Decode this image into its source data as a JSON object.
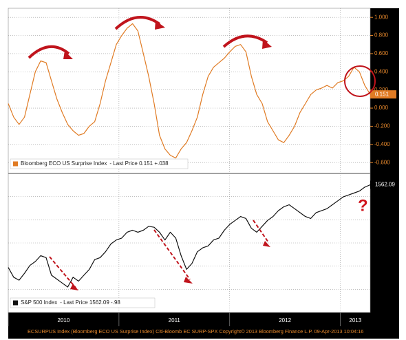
{
  "chart_data": [
    {
      "type": "line",
      "series": [
        {
          "name": "Bloomberg ECO US Surprise Index",
          "legend_text": "- Last Price 0.151 +.038",
          "color": "#e07b24",
          "values": [
            0.05,
            -0.1,
            -0.18,
            -0.1,
            0.15,
            0.4,
            0.52,
            0.5,
            0.3,
            0.1,
            -0.05,
            -0.18,
            -0.25,
            -0.3,
            -0.28,
            -0.2,
            -0.15,
            0.05,
            0.3,
            0.5,
            0.7,
            0.8,
            0.88,
            0.93,
            0.85,
            0.6,
            0.35,
            0.05,
            -0.3,
            -0.45,
            -0.52,
            -0.55,
            -0.45,
            -0.38,
            -0.25,
            -0.1,
            0.15,
            0.35,
            0.45,
            0.5,
            0.55,
            0.62,
            0.68,
            0.7,
            0.62,
            0.35,
            0.15,
            0.05,
            -0.15,
            -0.25,
            -0.35,
            -0.38,
            -0.3,
            -0.2,
            -0.05,
            0.05,
            0.15,
            0.2,
            0.22,
            0.25,
            0.22,
            0.28,
            0.3,
            0.35,
            0.45,
            0.4,
            0.25,
            0.151
          ]
        }
      ],
      "last_price_label": "0.151",
      "xlim": [
        2010,
        2013.27
      ],
      "xticks": [
        2010,
        2011,
        2012,
        2013
      ],
      "ylim": [
        -0.72,
        1.1
      ],
      "yticks": [
        {
          "value": 1,
          "label": "1.000"
        },
        {
          "value": 0.8,
          "label": "0.800"
        },
        {
          "value": 0.6,
          "label": "0.600"
        },
        {
          "value": 0.4,
          "label": "0.400"
        },
        {
          "value": 0.2,
          "label": "0.200"
        },
        {
          "value": 0,
          "label": "0.000"
        },
        {
          "value": -0.2,
          "label": "-0.200"
        },
        {
          "value": -0.4,
          "label": "-0.400"
        },
        {
          "value": -0.6,
          "label": "-0.600"
        }
      ],
      "grid": true
    },
    {
      "type": "line",
      "series": [
        {
          "name": "S&P 500 Index",
          "legend_text": "- Last Price 1562.09 -.98",
          "color": "#111111",
          "values": [
            1140,
            1090,
            1075,
            1110,
            1150,
            1170,
            1200,
            1190,
            1100,
            1080,
            1060,
            1040,
            1090,
            1070,
            1100,
            1130,
            1180,
            1190,
            1220,
            1260,
            1280,
            1290,
            1320,
            1330,
            1320,
            1330,
            1350,
            1345,
            1320,
            1280,
            1320,
            1290,
            1200,
            1130,
            1160,
            1220,
            1240,
            1250,
            1280,
            1290,
            1330,
            1360,
            1380,
            1400,
            1390,
            1340,
            1320,
            1350,
            1380,
            1400,
            1430,
            1450,
            1460,
            1440,
            1420,
            1400,
            1390,
            1420,
            1430,
            1440,
            1460,
            1480,
            1500,
            1510,
            1520,
            1530,
            1550,
            1562.09
          ]
        }
      ],
      "last_price_label": "1562.09",
      "xlim": [
        2010,
        2013.27
      ],
      "xticks": [
        2010,
        2011,
        2012,
        2013
      ],
      "ylim": [
        910,
        1620
      ],
      "grid": true
    }
  ],
  "footer": "ECSURPUS Index (Bloomberg ECO US Surprise Index) Citi-Bloomb EC SURP-SPX Copyright© 2013 Bloomberg Finance L.P. 09-Apr-2013 10:04:16"
}
